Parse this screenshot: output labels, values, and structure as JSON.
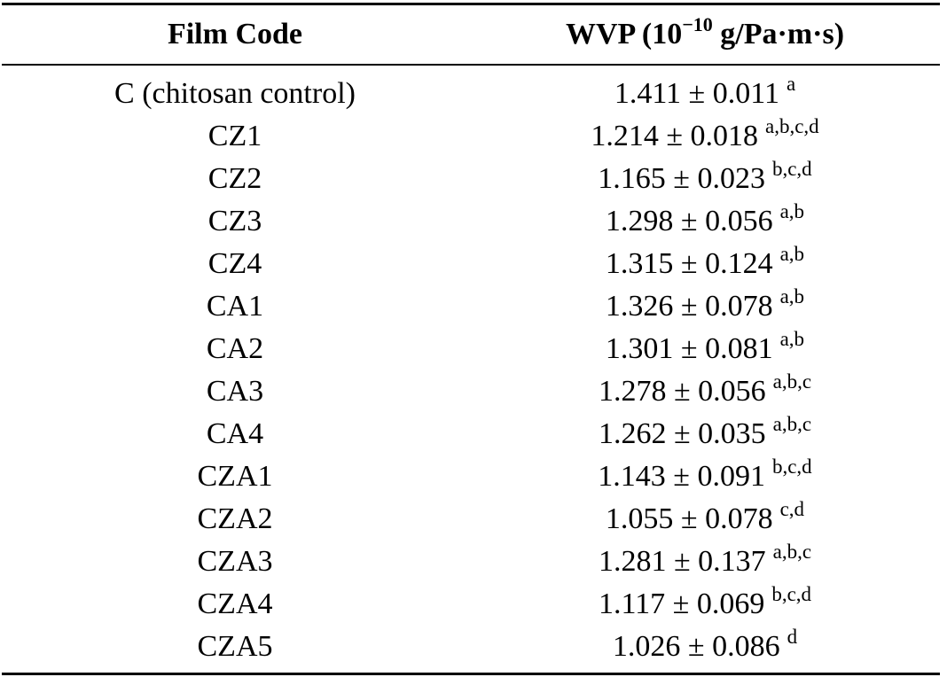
{
  "table": {
    "headers": {
      "film_code": "Film Code",
      "wvp_prefix": "WVP (10",
      "wvp_exponent": "−10",
      "wvp_suffix": " g/Pa·m·s)"
    },
    "rows": [
      {
        "code": "C (chitosan control)",
        "value": "1.411 ± 0.011",
        "sig": "a"
      },
      {
        "code": "CZ1",
        "value": "1.214 ± 0.018",
        "sig": "a,b,c,d"
      },
      {
        "code": "CZ2",
        "value": "1.165 ± 0.023",
        "sig": "b,c,d"
      },
      {
        "code": "CZ3",
        "value": "1.298 ± 0.056",
        "sig": "a,b"
      },
      {
        "code": "CZ4",
        "value": "1.315 ± 0.124",
        "sig": "a,b"
      },
      {
        "code": "CA1",
        "value": "1.326 ± 0.078",
        "sig": "a,b"
      },
      {
        "code": "CA2",
        "value": "1.301 ± 0.081",
        "sig": "a,b"
      },
      {
        "code": "CA3",
        "value": "1.278 ± 0.056",
        "sig": "a,b,c"
      },
      {
        "code": "CA4",
        "value": "1.262 ± 0.035",
        "sig": "a,b,c"
      },
      {
        "code": "CZA1",
        "value": "1.143 ± 0.091",
        "sig": "b,c,d"
      },
      {
        "code": "CZA2",
        "value": "1.055 ± 0.078",
        "sig": "c,d"
      },
      {
        "code": "CZA3",
        "value": "1.281 ± 0.137",
        "sig": "a,b,c"
      },
      {
        "code": "CZA4",
        "value": "1.117 ± 0.069",
        "sig": "b,c,d"
      },
      {
        "code": "CZA5",
        "value": "1.026 ± 0.086",
        "sig": "d"
      }
    ]
  }
}
